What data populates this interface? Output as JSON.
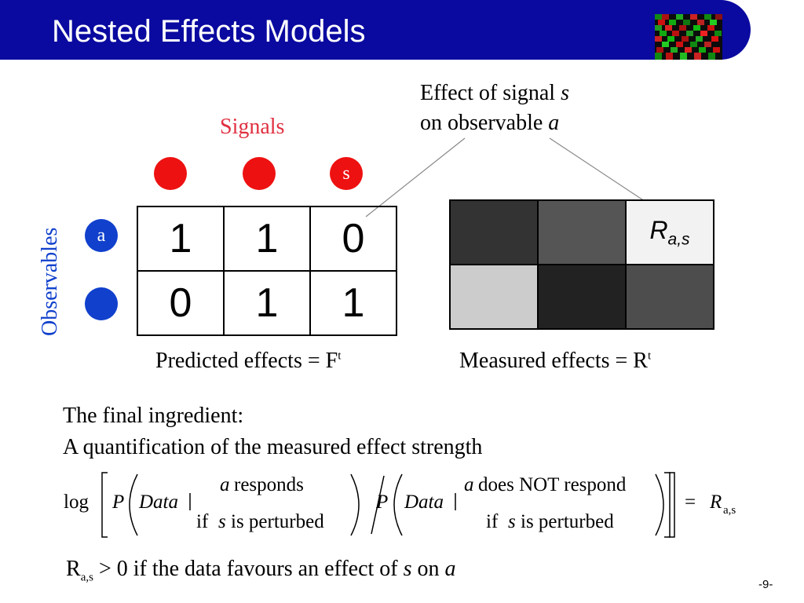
{
  "header": {
    "title": "Nested Effects Models"
  },
  "diagram": {
    "signals_label": "Signals",
    "signal_dot_label": "s",
    "observables_label": "Observables",
    "observable_dot_label": "a",
    "effect_note": {
      "line1": "Effect of signal ",
      "line1_var": "s",
      "line2": "on observable ",
      "line2_var": "a"
    },
    "predicted": {
      "rows": [
        [
          "1",
          "1",
          "0"
        ],
        [
          "0",
          "1",
          "1"
        ]
      ],
      "caption": "Predicted effects = F",
      "caption_sup": "t"
    },
    "measured": {
      "shades": [
        [
          "#333333",
          "#555555",
          "#f2f2f2"
        ],
        [
          "#cccccc",
          "#222222",
          "#4d4d4d"
        ]
      ],
      "cell_label": "R",
      "cell_label_sub": "a,s",
      "caption": "Measured effects = R",
      "caption_sup": "t"
    },
    "colors": {
      "banner": "#0a0aa0",
      "signal": "#ee1111",
      "observable": "#1040cc",
      "signals_text": "#e03040"
    }
  },
  "body": {
    "line1": "The final ingredient:",
    "line2": "A quantification of the measured effect strength"
  },
  "formula": {
    "log": "log",
    "p1": "P",
    "data1": "Data",
    "resp_var": "a",
    "resp_text": "responds",
    "if1": "if",
    "pert_var1": "s",
    "pert_text1": "is perturbed",
    "p2": "P",
    "data2": "Data",
    "noresp_var": "a",
    "noresp_text": "does NOT respond",
    "if2": "if",
    "pert_var2": "s",
    "pert_text2": "is perturbed",
    "equals": "=",
    "rhs": "R",
    "rhs_sub": "a,s"
  },
  "footer": {
    "r": "R",
    "r_sub": "a,s",
    "text_before": " > 0 if the data favours an effect of ",
    "var_s": "s",
    "text_mid": " on ",
    "var_a": "a",
    "page": "-9-"
  }
}
